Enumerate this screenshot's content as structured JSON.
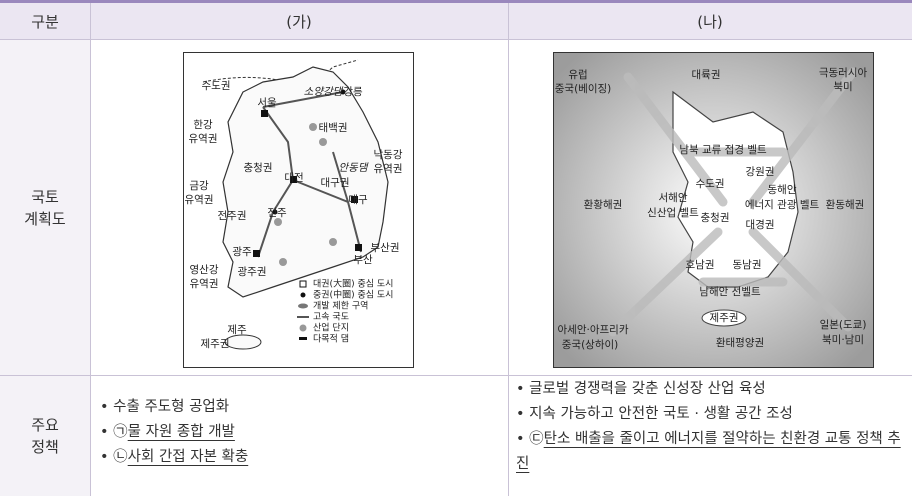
{
  "table": {
    "header": [
      "구분",
      "(가)",
      "(나)"
    ],
    "row_labels": [
      [
        "국토",
        "계획도"
      ],
      [
        "주요",
        "정책"
      ]
    ],
    "map_a": {
      "labels": [
        "수도권",
        "서울",
        "소양강댐",
        "강릉",
        "태백권",
        "충청권",
        "대전",
        "안동댐",
        "대구권",
        "대구",
        "전주권",
        "전주",
        "광주",
        "부산권",
        "부산",
        "광주권",
        "제주",
        "제주권"
      ],
      "two_line_labels": [
        [
          "한강",
          "유역권"
        ],
        [
          "낙동강",
          "유역권"
        ],
        [
          "금강",
          "유역권"
        ],
        [
          "영산강",
          "유역권"
        ]
      ],
      "legend": [
        "대권(大圈) 중심 도시",
        "중권(中圈) 중심 도시",
        "개발 제한 구역",
        "고속 국도",
        "산업 단지",
        "다목적 댐"
      ]
    },
    "map_b": {
      "labels": [
        "대륙권",
        "남북 교류 접경 벨트",
        "수도권",
        "강원권",
        "환황해권",
        "충청권",
        "환동해권",
        "대경권",
        "호남권",
        "동남권",
        "남해안 선벨트",
        "제주권",
        "환태평양권"
      ],
      "two_line_labels": [
        [
          "유럽",
          "중국(베이징)"
        ],
        [
          "극동러시아",
          "북미"
        ],
        [
          "서해안",
          "신산업 벨트"
        ],
        [
          "동해안",
          "에너지 관광 벨트"
        ],
        [
          "아세안·아프리카",
          "중국(상하이)"
        ],
        [
          "일본(도쿄)",
          "북미·남미"
        ]
      ]
    },
    "policies_a": [
      {
        "text": "수출 주도형 공업화"
      },
      {
        "marker": "㉠",
        "text": "물 자원 종합 개발"
      },
      {
        "marker": "㉡",
        "text": "사회 간접 자본 확충"
      }
    ],
    "policies_b": [
      {
        "text": "글로벌 경쟁력을 갖춘 신성장 산업 육성"
      },
      {
        "text": "지속 가능하고 안전한 국토 · 생활 공간 조성"
      },
      {
        "marker": "㉢",
        "text": "탄소 배출을 줄이고 에너지를 절약하는 친환경 교통 정책 추진"
      }
    ]
  }
}
